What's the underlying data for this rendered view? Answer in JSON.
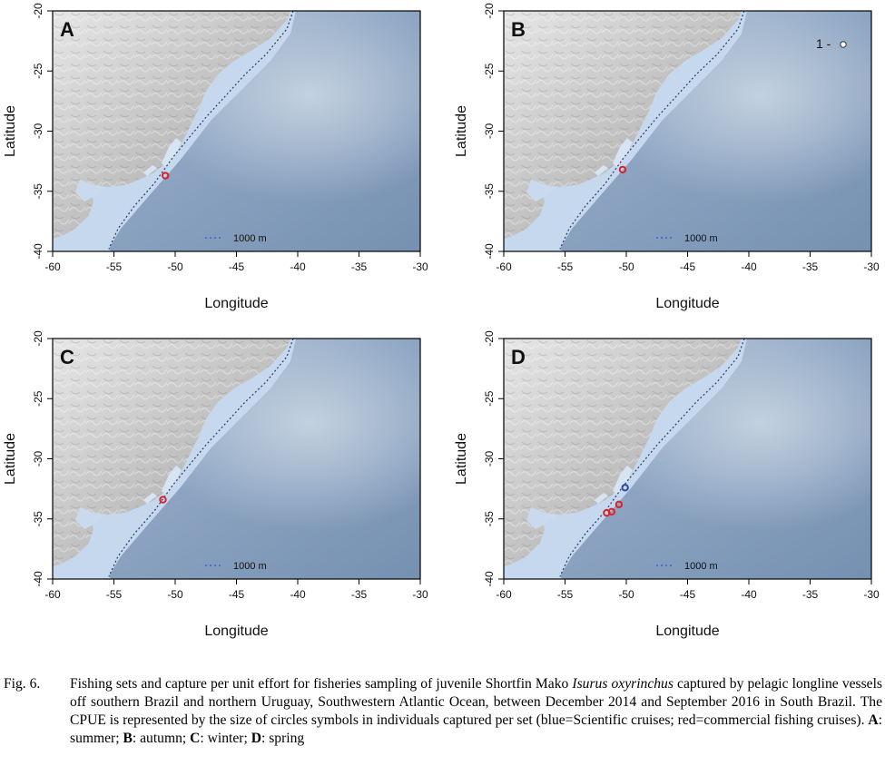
{
  "panels": [
    {
      "label": "A",
      "legend": "1000 m",
      "sets": [
        {
          "lon": -50.8,
          "lat": -33.7,
          "color": "#d8232a",
          "individuals": 1
        }
      ]
    },
    {
      "label": "B",
      "legend": "1000 m",
      "size_legend_label": "1 -",
      "sets": [
        {
          "lon": -50.3,
          "lat": -33.2,
          "color": "#d8232a",
          "individuals": 1
        }
      ]
    },
    {
      "label": "C",
      "legend": "1000 m",
      "sets": [
        {
          "lon": -51.0,
          "lat": -33.4,
          "color": "#d8232a",
          "individuals": 1
        }
      ]
    },
    {
      "label": "D",
      "legend": "1000 m",
      "sets": [
        {
          "lon": -50.6,
          "lat": -33.8,
          "color": "#d8232a",
          "individuals": 1
        },
        {
          "lon": -51.2,
          "lat": -34.4,
          "color": "#d8232a",
          "individuals": 1
        },
        {
          "lon": -51.6,
          "lat": -34.5,
          "color": "#d8232a",
          "individuals": 1
        },
        {
          "lon": -50.1,
          "lat": -32.4,
          "color": "#3046a8",
          "individuals": 1
        }
      ]
    }
  ],
  "axes": {
    "x_label": "Longitude",
    "y_label": "Latitude",
    "x_ticks": [
      "-60",
      "-55",
      "-50",
      "-45",
      "-40",
      "-35",
      "-30"
    ],
    "y_ticks": [
      "-20",
      "-25",
      "-30",
      "-35",
      "-40"
    ],
    "x_range": [
      -60,
      -30
    ],
    "y_range": [
      -40,
      -20
    ]
  },
  "colors": {
    "commercial": "#d8232a",
    "scientific": "#3046a8",
    "isobath": "#2a3b66",
    "land_light": "#dcdcdc",
    "land_dark": "#8f8f8f",
    "shelf": "#c6d8ee",
    "ocean_deep": "#7e98b8"
  },
  "caption": {
    "label": "Fig. 6.",
    "part1": "Fishing sets and capture per unit effort for fisheries sampling of juvenile Shortfin Mako ",
    "species": "Isurus oxyrinchus",
    "part2": " captured by pelagic longline vessels off southern Brazil and northern Uruguay, Southwestern Atlantic Ocean, between December 2014 and September 2016 in South Brazil. The CPUE is represented by the size of circles symbols in individuals captured per set (blue=Scientific cruises; red=commercial fishing cruises). ",
    "season_a_label": "A",
    "season_a": ": summer; ",
    "season_b_label": "B",
    "season_b": ": autumn; ",
    "season_c_label": "C",
    "season_c": ": winter; ",
    "season_d_label": "D",
    "season_d": ": spring"
  }
}
